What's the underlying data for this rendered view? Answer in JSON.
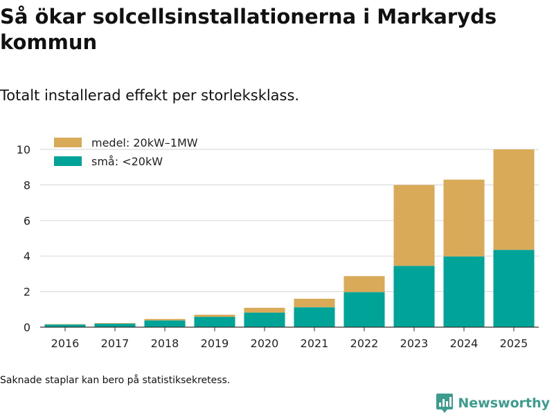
{
  "title": "Så ökar solcellsinstallationerna i Markaryds kommun",
  "subtitle": "Totalt installerad effekt per storleksklass.",
  "footnote": "Saknade staplar kan bero på statistiksekretess.",
  "brand": "Newsworthy",
  "colors": {
    "medel": "#d9aa57",
    "sma": "#00a398",
    "grid": "#dcdcdc",
    "axis": "#333333",
    "brand": "#3c9c8d"
  },
  "chart_data": {
    "type": "bar",
    "stacked": true,
    "categories": [
      "2016",
      "2017",
      "2018",
      "2019",
      "2020",
      "2021",
      "2022",
      "2023",
      "2024",
      "2025"
    ],
    "series": [
      {
        "name": "små: <20kW",
        "key": "sma",
        "values": [
          0.15,
          0.2,
          0.38,
          0.58,
          0.82,
          1.12,
          1.97,
          3.45,
          3.98,
          4.35
        ]
      },
      {
        "name": "medel: 20kW–1MW",
        "key": "medel",
        "values": [
          0.02,
          0.03,
          0.08,
          0.12,
          0.27,
          0.48,
          0.9,
          4.55,
          4.32,
          5.65
        ]
      }
    ],
    "legend": [
      "medel: 20kW–1MW",
      "små: <20kW"
    ],
    "legend_position": "top-left",
    "yticks": [
      "0",
      "2",
      "4",
      "6",
      "8",
      "10"
    ],
    "ylim": [
      0,
      10
    ],
    "grid": true,
    "xlabel": "",
    "ylabel": ""
  }
}
